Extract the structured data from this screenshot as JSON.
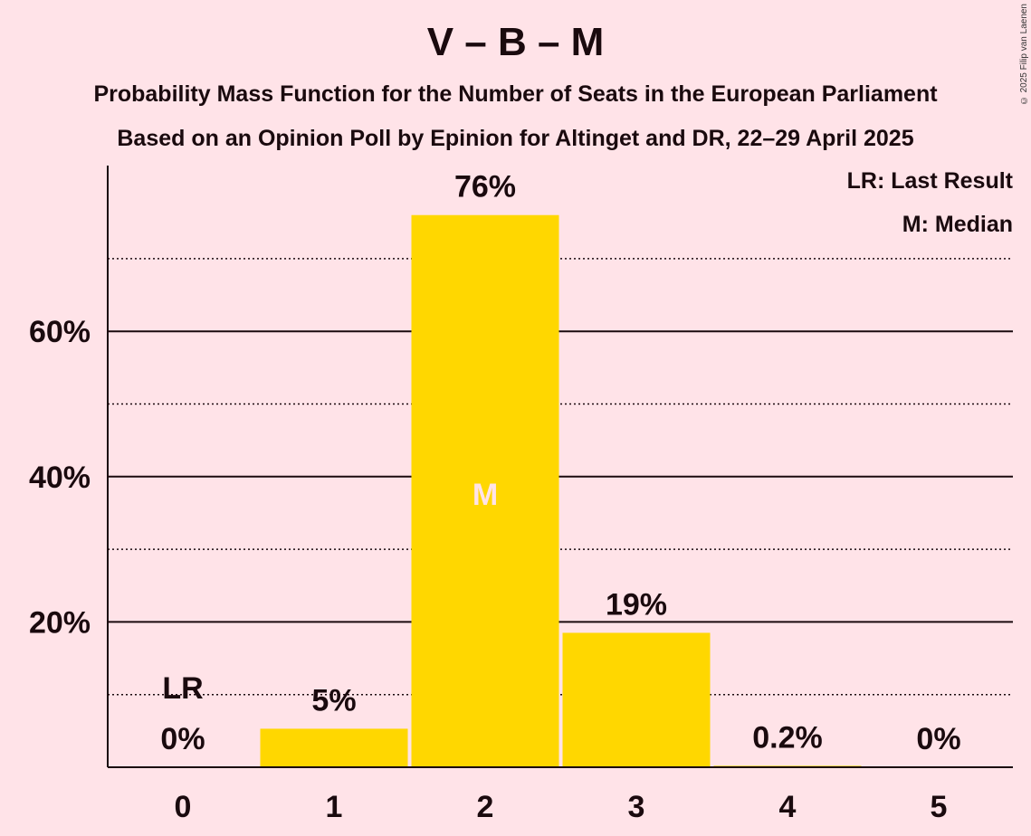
{
  "copyright": "© 2025 Filip van Laenen",
  "colors": {
    "background": "#FFE3E8",
    "bar": "#FFD700",
    "text": "#1a0a0e",
    "median_text": "#FFE3E8"
  },
  "chart_data": {
    "type": "bar",
    "title": "V – B – M",
    "subtitle": "Probability Mass Function for the Number of Seats in the European Parliament",
    "subtitle2": "Based on an Opinion Poll by Epinion for Altinget and DR, 22–29 April 2025",
    "categories": [
      "0",
      "1",
      "2",
      "3",
      "4",
      "5"
    ],
    "values": [
      0,
      5.3,
      76,
      18.5,
      0.2,
      0
    ],
    "data_labels": [
      "0%",
      "5%",
      "76%",
      "19%",
      "0.2%",
      "0%"
    ],
    "yticks": [
      "20%",
      "40%",
      "60%"
    ],
    "ytick_values": [
      20,
      40,
      60
    ],
    "ylim": [
      0,
      83
    ],
    "grid": {
      "major": [
        20,
        40,
        60
      ],
      "minor": [
        10,
        30,
        50,
        70
      ]
    },
    "last_result": {
      "category": "0",
      "label": "LR"
    },
    "median": {
      "category": "2",
      "label": "M"
    },
    "legend": {
      "position": "top-right",
      "entries": [
        "LR: Last Result",
        "M: Median"
      ]
    }
  }
}
